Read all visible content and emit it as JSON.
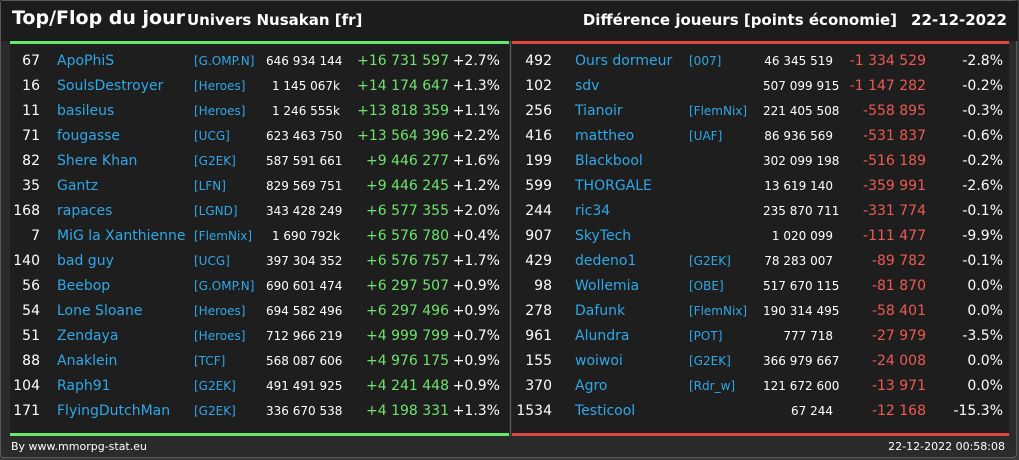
{
  "header": {
    "title": "Top/Flop du jour",
    "server": "Univers Nusakan [fr]",
    "metric": "Différence joueurs [points économie]",
    "date": "22-12-2022"
  },
  "colors": {
    "top_accent": "#66e86a",
    "flop_accent": "#dc4a44",
    "link": "#2fa8e8"
  },
  "top": [
    {
      "rank": "67",
      "name": "ApoPhiS",
      "alliance": "[G.OMP.N]",
      "points": "646 934 144",
      "diff": "+16 731 597",
      "pct": "+2.7%"
    },
    {
      "rank": "16",
      "name": "SoulsDestroyer",
      "alliance": "[Heroes]",
      "points": "1 145 067k",
      "diff": "+14 174 647",
      "pct": "+1.3%"
    },
    {
      "rank": "11",
      "name": "basileus",
      "alliance": "[Heroes]",
      "points": "1 246 555k",
      "diff": "+13 818 359",
      "pct": "+1.1%"
    },
    {
      "rank": "71",
      "name": "fougasse",
      "alliance": "[UCG]",
      "points": "623 463 750",
      "diff": "+13 564 396",
      "pct": "+2.2%"
    },
    {
      "rank": "82",
      "name": "Shere Khan",
      "alliance": "[G2EK]",
      "points": "587 591 661",
      "diff": "+9 446 277",
      "pct": "+1.6%"
    },
    {
      "rank": "35",
      "name": "Gantz",
      "alliance": "[LFN]",
      "points": "829 569 751",
      "diff": "+9 446 245",
      "pct": "+1.2%"
    },
    {
      "rank": "168",
      "name": "rapaces",
      "alliance": "[LGND]",
      "points": "343 428 249",
      "diff": "+6 577 355",
      "pct": "+2.0%"
    },
    {
      "rank": "7",
      "name": "MiG la Xanthienne",
      "alliance": "[FlemNix]",
      "points": "1 690 792k",
      "diff": "+6 576 780",
      "pct": "+0.4%"
    },
    {
      "rank": "140",
      "name": "bad guy",
      "alliance": "[UCG]",
      "points": "397 304 352",
      "diff": "+6 576 757",
      "pct": "+1.7%"
    },
    {
      "rank": "56",
      "name": "Beebop",
      "alliance": "[G.OMP.N]",
      "points": "690 601 474",
      "diff": "+6 297 507",
      "pct": "+0.9%"
    },
    {
      "rank": "54",
      "name": "Lone Sloane",
      "alliance": "[Heroes]",
      "points": "694 582 496",
      "diff": "+6 297 496",
      "pct": "+0.9%"
    },
    {
      "rank": "51",
      "name": "Zendaya",
      "alliance": "[Heroes]",
      "points": "712 966 219",
      "diff": "+4 999 799",
      "pct": "+0.7%"
    },
    {
      "rank": "88",
      "name": "Anaklein",
      "alliance": "[TCF]",
      "points": "568 087 606",
      "diff": "+4 976 175",
      "pct": "+0.9%"
    },
    {
      "rank": "104",
      "name": "Raph91",
      "alliance": "[G2EK]",
      "points": "491 491 925",
      "diff": "+4 241 448",
      "pct": "+0.9%"
    },
    {
      "rank": "171",
      "name": "FlyingDutchMan",
      "alliance": "[G2EK]",
      "points": "336 670 538",
      "diff": "+4 198 331",
      "pct": "+1.3%"
    }
  ],
  "flop": [
    {
      "rank": "492",
      "name": "Ours dormeur",
      "alliance": "[007]",
      "points": "46 345 519",
      "diff": "-1 334 529",
      "pct": "-2.8%"
    },
    {
      "rank": "102",
      "name": "sdv",
      "alliance": "",
      "points": "507 099 915",
      "diff": "-1 147 282",
      "pct": "-0.2%"
    },
    {
      "rank": "256",
      "name": "Tianoir",
      "alliance": "[FlemNix]",
      "points": "221 405 508",
      "diff": "-558 895",
      "pct": "-0.3%"
    },
    {
      "rank": "416",
      "name": "mattheo",
      "alliance": "[UAF]",
      "points": "86 936 569",
      "diff": "-531 837",
      "pct": "-0.6%"
    },
    {
      "rank": "199",
      "name": "Blackbool",
      "alliance": "",
      "points": "302 099 198",
      "diff": "-516 189",
      "pct": "-0.2%"
    },
    {
      "rank": "599",
      "name": "THORGALE",
      "alliance": "",
      "points": "13 619 140",
      "diff": "-359 991",
      "pct": "-2.6%"
    },
    {
      "rank": "244",
      "name": "ric34",
      "alliance": "",
      "points": "235 870 711",
      "diff": "-331 774",
      "pct": "-0.1%"
    },
    {
      "rank": "907",
      "name": "SkyTech",
      "alliance": "",
      "points": "1 020 099",
      "diff": "-111 477",
      "pct": "-9.9%"
    },
    {
      "rank": "429",
      "name": "dedeno1",
      "alliance": "[G2EK]",
      "points": "78 283 007",
      "diff": "-89 782",
      "pct": "-0.1%"
    },
    {
      "rank": "98",
      "name": "Wollemia",
      "alliance": "[OBE]",
      "points": "517 670 115",
      "diff": "-81 870",
      "pct": "0.0%"
    },
    {
      "rank": "278",
      "name": "Dafunk",
      "alliance": "[FlemNix]",
      "points": "190 314 495",
      "diff": "-58 401",
      "pct": "0.0%"
    },
    {
      "rank": "961",
      "name": "Alundra",
      "alliance": "[POT]",
      "points": "777 718",
      "diff": "-27 979",
      "pct": "-3.5%"
    },
    {
      "rank": "155",
      "name": "woiwoi",
      "alliance": "[G2EK]",
      "points": "366 979 667",
      "diff": "-24 008",
      "pct": "0.0%"
    },
    {
      "rank": "370",
      "name": "Agro",
      "alliance": "[Rdr_w]",
      "points": "121 672 600",
      "diff": "-13 971",
      "pct": "0.0%"
    },
    {
      "rank": "1534",
      "name": "Testicool",
      "alliance": "",
      "points": "67 244",
      "diff": "-12 168",
      "pct": "-15.3%"
    }
  ],
  "footer": {
    "credit": "By www.mmorpg-stat.eu",
    "timestamp": "22-12-2022 00:58:08"
  }
}
